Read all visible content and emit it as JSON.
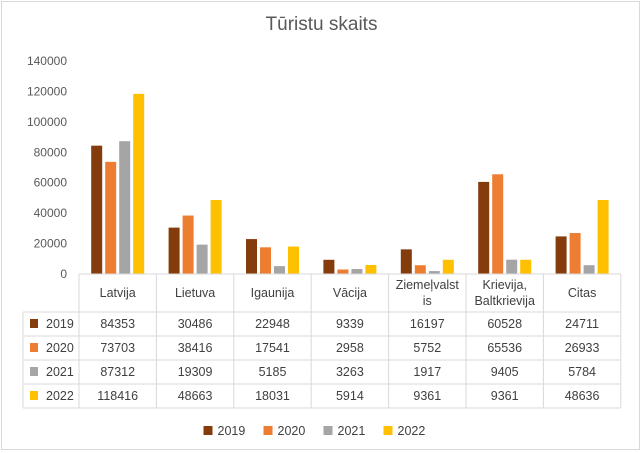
{
  "chart_data": {
    "type": "bar",
    "title": "Tūristu skaits",
    "categories": [
      [
        "Latvija"
      ],
      [
        "Lietuva"
      ],
      [
        "Igaunija"
      ],
      [
        "Vācija"
      ],
      [
        "Ziemeļvalst",
        "is"
      ],
      [
        "Krievija,",
        "Baltkrievija"
      ],
      [
        "Citas"
      ]
    ],
    "series": [
      {
        "name": "2019",
        "color": "#843c0c",
        "values": [
          84353,
          30486,
          22948,
          9339,
          16197,
          60528,
          24711
        ]
      },
      {
        "name": "2020",
        "color": "#ed7d31",
        "values": [
          73703,
          38416,
          17541,
          2958,
          5752,
          65536,
          26933
        ]
      },
      {
        "name": "2021",
        "color": "#a5a5a5",
        "values": [
          87312,
          19309,
          5185,
          3263,
          1917,
          9405,
          5784
        ]
      },
      {
        "name": "2022",
        "color": "#ffc000",
        "values": [
          118416,
          48663,
          18031,
          5914,
          9361,
          9361,
          48636
        ]
      }
    ],
    "ylim": [
      0,
      140000
    ],
    "yticks": [
      0,
      20000,
      40000,
      60000,
      80000,
      100000,
      120000,
      140000
    ],
    "grid": false,
    "legend": "bottom",
    "data_table": true
  }
}
